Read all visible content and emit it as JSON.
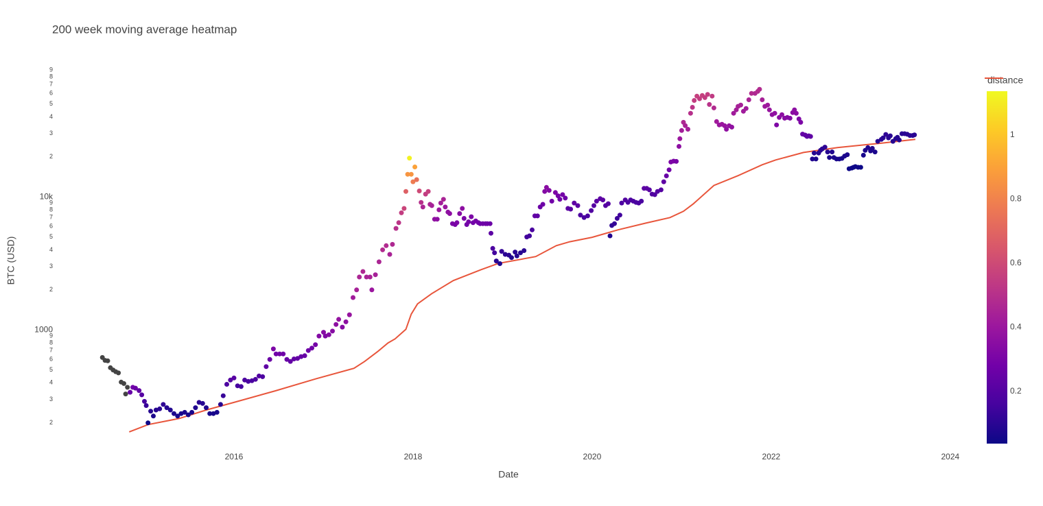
{
  "chart_data": {
    "type": "scatter",
    "title": "200 week moving average heatmap",
    "x_label": "Date",
    "y_label": "BTC (USD)",
    "xlim": [
      2014.0,
      2024.3
    ],
    "xticks": [
      2016,
      2018,
      2020,
      2022,
      2024
    ],
    "ylim": [
      138,
      98000
    ],
    "log_y": true,
    "grid": false,
    "yticks": [
      {
        "value": 200,
        "label": "2"
      },
      {
        "value": 300,
        "label": "3"
      },
      {
        "value": 400,
        "label": "4"
      },
      {
        "value": 500,
        "label": "5"
      },
      {
        "value": 600,
        "label": "6"
      },
      {
        "value": 700,
        "label": "7"
      },
      {
        "value": 800,
        "label": "8"
      },
      {
        "value": 900,
        "label": "9"
      },
      1000,
      {
        "value": 2000,
        "label": "2"
      },
      {
        "value": 3000,
        "label": "3"
      },
      {
        "value": 4000,
        "label": "4"
      },
      {
        "value": 5000,
        "label": "5"
      },
      {
        "value": 6000,
        "label": "6"
      },
      {
        "value": 7000,
        "label": "7"
      },
      {
        "value": 8000,
        "label": "8"
      },
      {
        "value": 9000,
        "label": "9"
      },
      {
        "value": 10000,
        "label": "10k"
      },
      {
        "value": 20000,
        "label": "2"
      },
      {
        "value": 30000,
        "label": "3"
      },
      {
        "value": 40000,
        "label": "4"
      },
      {
        "value": 50000,
        "label": "5"
      },
      {
        "value": 60000,
        "label": "6"
      },
      {
        "value": 70000,
        "label": "7"
      },
      {
        "value": 80000,
        "label": "8"
      },
      {
        "value": 90000,
        "label": "9"
      }
    ],
    "colorbar": {
      "title": "distance",
      "clim": [
        0.037,
        1.137
      ],
      "cticks": [
        0.2,
        0.4,
        0.6,
        0.8,
        1
      ],
      "colorscale": [
        "#0d0887",
        "#46039f",
        "#7201a8",
        "#9c179e",
        "#bd3786",
        "#d8576b",
        "#ed7953",
        "#fb9f3a",
        "#fdca26",
        "#f0f921"
      ],
      "null_color": "#444444"
    },
    "series": [
      {
        "type": "line",
        "color": "#e8553b",
        "x": [
          2014.83,
          2015.04,
          2015.39,
          2015.69,
          2016.0,
          2016.46,
          2016.92,
          2017.34,
          2017.46,
          2017.61,
          2017.72,
          2017.8,
          2017.92,
          2017.98,
          2018.05,
          2018.21,
          2018.45,
          2018.76,
          2018.95,
          2019.37,
          2019.6,
          2019.75,
          2020.0,
          2020.29,
          2020.6,
          2020.87,
          2021.02,
          2021.13,
          2021.36,
          2021.63,
          2021.9,
          2022.05,
          2022.36,
          2022.74,
          2023.2,
          2023.61
        ],
        "values": [
          171,
          194,
          216,
          250,
          285,
          348,
          430,
          514,
          580,
          692,
          798,
          857,
          1010,
          1314,
          1570,
          1875,
          2350,
          2840,
          3160,
          3560,
          4300,
          4600,
          4970,
          5660,
          6360,
          7000,
          7800,
          8870,
          12200,
          14450,
          17450,
          18970,
          21600,
          23500,
          25260,
          27100
        ]
      },
      {
        "type": "scatter",
        "x": [
          2014.53,
          2014.56,
          2014.59,
          2014.62,
          2014.65,
          2014.68,
          2014.71,
          2014.74,
          2014.77,
          2014.79,
          2014.81,
          2014.84,
          2014.87,
          2014.9,
          2014.94,
          2014.97,
          2015.0,
          2015.02,
          2015.04,
          2015.07,
          2015.1,
          2015.13,
          2015.17,
          2015.21,
          2015.25,
          2015.29,
          2015.33,
          2015.37,
          2015.41,
          2015.45,
          2015.49,
          2015.53,
          2015.57,
          2015.61,
          2015.65,
          2015.69,
          2015.73,
          2015.77,
          2015.81,
          2015.85,
          2015.88,
          2015.92,
          2015.96,
          2016.0,
          2016.04,
          2016.08,
          2016.12,
          2016.16,
          2016.2,
          2016.24,
          2016.28,
          2016.32,
          2016.36,
          2016.4,
          2016.44,
          2016.47,
          2016.51,
          2016.55,
          2016.59,
          2016.63,
          2016.67,
          2016.71,
          2016.75,
          2016.79,
          2016.83,
          2016.87,
          2016.91,
          2016.95,
          2017.0,
          2017.02,
          2017.06,
          2017.1,
          2017.14,
          2017.17,
          2017.21,
          2017.25,
          2017.29,
          2017.33,
          2017.37,
          2017.4,
          2017.44,
          2017.48,
          2017.52,
          2017.54,
          2017.58,
          2017.62,
          2017.66,
          2017.7,
          2017.74,
          2017.77,
          2017.81,
          2017.84,
          2017.87,
          2017.9,
          2017.92,
          2017.94,
          2017.96,
          2017.98,
          2018.0,
          2018.02,
          2018.04,
          2018.07,
          2018.09,
          2018.11,
          2018.14,
          2018.17,
          2018.19,
          2018.21,
          2018.24,
          2018.27,
          2018.29,
          2018.31,
          2018.34,
          2018.36,
          2018.39,
          2018.41,
          2018.44,
          2018.47,
          2018.49,
          2018.52,
          2018.55,
          2018.57,
          2018.6,
          2018.62,
          2018.65,
          2018.67,
          2018.7,
          2018.73,
          2018.75,
          2018.78,
          2018.81,
          2018.83,
          2018.86,
          2018.87,
          2018.89,
          2018.91,
          2018.93,
          2018.97,
          2018.99,
          2019.03,
          2019.07,
          2019.1,
          2019.14,
          2019.16,
          2019.2,
          2019.24,
          2019.27,
          2019.3,
          2019.33,
          2019.36,
          2019.39,
          2019.42,
          2019.45,
          2019.47,
          2019.49,
          2019.52,
          2019.55,
          2019.59,
          2019.62,
          2019.64,
          2019.67,
          2019.7,
          2019.73,
          2019.76,
          2019.8,
          2019.84,
          2019.87,
          2019.91,
          2019.95,
          2019.99,
          2020.02,
          2020.05,
          2020.09,
          2020.12,
          2020.15,
          2020.18,
          2020.2,
          2020.22,
          2020.25,
          2020.28,
          2020.31,
          2020.33,
          2020.37,
          2020.4,
          2020.43,
          2020.46,
          2020.49,
          2020.52,
          2020.55,
          2020.58,
          2020.61,
          2020.64,
          2020.67,
          2020.7,
          2020.73,
          2020.77,
          2020.8,
          2020.83,
          2020.86,
          2020.88,
          2020.91,
          2020.94,
          2020.97,
          2020.98,
          2021.0,
          2021.02,
          2021.04,
          2021.07,
          2021.1,
          2021.12,
          2021.14,
          2021.17,
          2021.2,
          2021.23,
          2021.26,
          2021.29,
          2021.31,
          2021.34,
          2021.36,
          2021.39,
          2021.42,
          2021.45,
          2021.48,
          2021.5,
          2021.53,
          2021.56,
          2021.58,
          2021.61,
          2021.63,
          2021.66,
          2021.69,
          2021.72,
          2021.75,
          2021.78,
          2021.82,
          2021.85,
          2021.87,
          2021.9,
          2021.93,
          2021.96,
          2021.98,
          2022.01,
          2022.04,
          2022.06,
          2022.09,
          2022.12,
          2022.15,
          2022.18,
          2022.21,
          2022.24,
          2022.26,
          2022.28,
          2022.31,
          2022.33,
          2022.35,
          2022.38,
          2022.4,
          2022.42,
          2022.44,
          2022.46,
          2022.48,
          2022.5,
          2022.53,
          2022.55,
          2022.57,
          2022.6,
          2022.63,
          2022.65,
          2022.68,
          2022.7,
          2022.73,
          2022.76,
          2022.79,
          2022.82,
          2022.85,
          2022.87,
          2022.9,
          2022.92,
          2022.94,
          2022.97,
          2023.0,
          2023.03,
          2023.05,
          2023.08,
          2023.11,
          2023.13,
          2023.16,
          2023.19,
          2023.23,
          2023.25,
          2023.28,
          2023.31,
          2023.33,
          2023.36,
          2023.39,
          2023.41,
          2023.43,
          2023.46,
          2023.49,
          2023.52,
          2023.55,
          2023.58,
          2023.6
        ],
        "values": [
          620,
          590,
          585,
          520,
          500,
          485,
          475,
          405,
          395,
          330,
          370,
          340,
          370,
          365,
          350,
          325,
          290,
          270,
          200,
          245,
          225,
          250,
          255,
          275,
          260,
          250,
          235,
          225,
          235,
          240,
          230,
          240,
          260,
          285,
          280,
          260,
          235,
          235,
          240,
          275,
          320,
          390,
          420,
          435,
          380,
          375,
          420,
          410,
          415,
          425,
          450,
          445,
          530,
          600,
          720,
          660,
          660,
          660,
          600,
          580,
          605,
          610,
          630,
          640,
          700,
          730,
          775,
          900,
          960,
          900,
          920,
          980,
          1100,
          1200,
          1050,
          1150,
          1300,
          1750,
          2000,
          2500,
          2750,
          2500,
          2500,
          2000,
          2600,
          3250,
          4000,
          4300,
          3700,
          4400,
          5800,
          6400,
          7600,
          8200,
          11000,
          14800,
          19600,
          14800,
          13000,
          16800,
          13500,
          11100,
          9100,
          8400,
          10500,
          11000,
          8800,
          8600,
          6800,
          6800,
          8000,
          9000,
          9600,
          8400,
          7700,
          7500,
          6300,
          6200,
          6400,
          7500,
          8200,
          6900,
          6200,
          6500,
          7100,
          6400,
          6600,
          6400,
          6300,
          6300,
          6300,
          6300,
          6300,
          5330,
          4100,
          3800,
          3300,
          3150,
          3900,
          3700,
          3650,
          3500,
          3850,
          3600,
          3800,
          3950,
          5000,
          5100,
          5650,
          7200,
          7200,
          8400,
          8800,
          11000,
          11800,
          11200,
          9300,
          10800,
          10200,
          9600,
          10400,
          9800,
          8200,
          8100,
          9000,
          8600,
          7300,
          7000,
          7200,
          7900,
          8600,
          9300,
          9700,
          9500,
          8600,
          8900,
          5100,
          6100,
          6300,
          6900,
          7300,
          9000,
          9500,
          9100,
          9500,
          9300,
          9100,
          9000,
          9300,
          11600,
          11600,
          11300,
          10500,
          10400,
          11000,
          11300,
          13000,
          14400,
          16000,
          18300,
          18600,
          18500,
          24000,
          27400,
          31600,
          36400,
          34400,
          32300,
          42600,
          47200,
          53200,
          57300,
          54800,
          58000,
          55800,
          59000,
          49600,
          57300,
          46700,
          36900,
          34800,
          35200,
          34300,
          32300,
          34300,
          33500,
          42600,
          45200,
          48000,
          49100,
          44100,
          46300,
          53800,
          60100,
          60100,
          62200,
          64500,
          53800,
          48000,
          49100,
          45200,
          41600,
          42600,
          34800,
          39600,
          41600,
          39100,
          39600,
          39100,
          43100,
          45200,
          42600,
          38600,
          36400,
          29700,
          29200,
          28500,
          28800,
          28500,
          19300,
          21400,
          19300,
          21400,
          22400,
          23000,
          23700,
          21800,
          19800,
          21800,
          19800,
          19300,
          19300,
          19500,
          20300,
          20800,
          16300,
          16500,
          16700,
          16900,
          16700,
          16700,
          20600,
          22400,
          23500,
          22200,
          23200,
          21800,
          26200,
          27100,
          27800,
          29500,
          27800,
          28800,
          26200,
          27400,
          28100,
          26800,
          29900,
          29900,
          29600,
          29000,
          29000,
          29300
        ],
        "color_values": [
          null,
          null,
          null,
          null,
          null,
          null,
          null,
          null,
          null,
          null,
          null,
          0.25,
          0.28,
          0.26,
          0.24,
          0.2,
          0.16,
          0.13,
          0.04,
          0.09,
          0.07,
          0.09,
          0.1,
          0.11,
          0.09,
          0.08,
          0.07,
          0.06,
          0.06,
          0.07,
          0.06,
          0.06,
          0.08,
          0.1,
          0.09,
          0.08,
          0.06,
          0.06,
          0.06,
          0.09,
          0.13,
          0.18,
          0.2,
          0.21,
          0.16,
          0.16,
          0.18,
          0.17,
          0.17,
          0.18,
          0.19,
          0.18,
          0.23,
          0.26,
          0.31,
          0.28,
          0.28,
          0.27,
          0.25,
          0.24,
          0.24,
          0.24,
          0.25,
          0.25,
          0.27,
          0.28,
          0.29,
          0.33,
          0.34,
          0.32,
          0.33,
          0.34,
          0.36,
          0.38,
          0.34,
          0.36,
          0.39,
          0.42,
          0.44,
          0.46,
          0.47,
          0.45,
          0.45,
          0.4,
          0.44,
          0.46,
          0.48,
          0.48,
          0.45,
          0.47,
          0.5,
          0.52,
          0.55,
          0.58,
          0.68,
          0.86,
          1.12,
          0.86,
          0.78,
          0.9,
          0.74,
          0.6,
          0.5,
          0.46,
          0.55,
          0.56,
          0.46,
          0.44,
          0.37,
          0.36,
          0.4,
          0.43,
          0.45,
          0.4,
          0.37,
          0.36,
          0.31,
          0.3,
          0.31,
          0.34,
          0.36,
          0.31,
          0.28,
          0.29,
          0.31,
          0.28,
          0.29,
          0.28,
          0.27,
          0.27,
          0.27,
          0.27,
          0.26,
          0.22,
          0.18,
          0.15,
          0.1,
          0.08,
          0.12,
          0.1,
          0.1,
          0.08,
          0.1,
          0.09,
          0.09,
          0.1,
          0.15,
          0.15,
          0.17,
          0.24,
          0.23,
          0.26,
          0.27,
          0.33,
          0.35,
          0.33,
          0.28,
          0.31,
          0.29,
          0.27,
          0.29,
          0.27,
          0.22,
          0.21,
          0.23,
          0.22,
          0.18,
          0.17,
          0.17,
          0.19,
          0.2,
          0.22,
          0.22,
          0.22,
          0.2,
          0.2,
          0.08,
          0.11,
          0.12,
          0.14,
          0.15,
          0.18,
          0.19,
          0.18,
          0.18,
          0.18,
          0.17,
          0.17,
          0.17,
          0.22,
          0.22,
          0.21,
          0.19,
          0.19,
          0.2,
          0.2,
          0.23,
          0.25,
          0.28,
          0.31,
          0.31,
          0.3,
          0.36,
          0.4,
          0.43,
          0.47,
          0.45,
          0.43,
          0.5,
          0.52,
          0.55,
          0.56,
          0.55,
          0.56,
          0.55,
          0.55,
          0.51,
          0.54,
          0.48,
          0.42,
          0.4,
          0.4,
          0.39,
          0.37,
          0.38,
          0.37,
          0.42,
          0.43,
          0.44,
          0.44,
          0.42,
          0.42,
          0.45,
          0.48,
          0.47,
          0.48,
          0.48,
          0.44,
          0.41,
          0.41,
          0.39,
          0.37,
          0.37,
          0.32,
          0.35,
          0.36,
          0.34,
          0.34,
          0.33,
          0.35,
          0.36,
          0.35,
          0.32,
          0.31,
          0.25,
          0.24,
          0.23,
          0.23,
          0.23,
          0.08,
          0.09,
          0.07,
          0.09,
          0.1,
          0.1,
          0.11,
          0.09,
          0.07,
          0.08,
          0.07,
          0.06,
          0.06,
          0.06,
          0.07,
          0.07,
          0.04,
          0.04,
          0.04,
          0.04,
          0.04,
          0.04,
          0.06,
          0.07,
          0.08,
          0.07,
          0.08,
          0.07,
          0.09,
          0.1,
          0.1,
          0.11,
          0.1,
          0.1,
          0.09,
          0.09,
          0.09,
          0.09,
          0.1,
          0.1,
          0.1,
          0.1,
          0.1,
          0.1
        ]
      }
    ]
  }
}
